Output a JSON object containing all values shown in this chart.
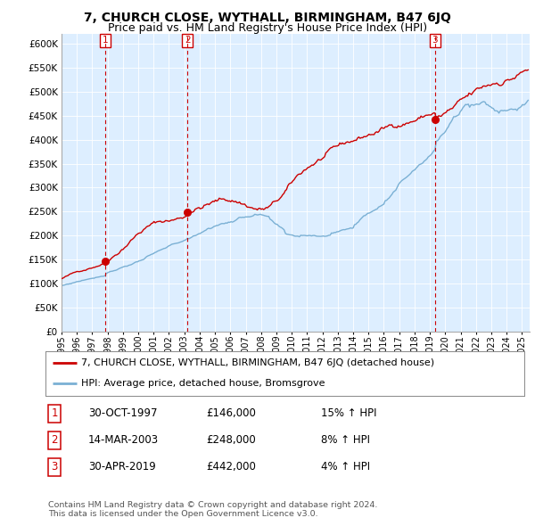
{
  "title": "7, CHURCH CLOSE, WYTHALL, BIRMINGHAM, B47 6JQ",
  "subtitle": "Price paid vs. HM Land Registry's House Price Index (HPI)",
  "ylim": [
    0,
    620000
  ],
  "yticks": [
    0,
    50000,
    100000,
    150000,
    200000,
    250000,
    300000,
    350000,
    400000,
    450000,
    500000,
    550000,
    600000
  ],
  "xlim_start": 1995.0,
  "xlim_end": 2025.5,
  "sale_dates": [
    1997.83,
    2003.21,
    2019.33
  ],
  "sale_prices": [
    146000,
    248000,
    442000
  ],
  "sale_labels": [
    "1",
    "2",
    "3"
  ],
  "legend_house": "7, CHURCH CLOSE, WYTHALL, BIRMINGHAM, B47 6JQ (detached house)",
  "legend_hpi": "HPI: Average price, detached house, Bromsgrove",
  "table_rows": [
    [
      "1",
      "30-OCT-1997",
      "£146,000",
      "15% ↑ HPI"
    ],
    [
      "2",
      "14-MAR-2003",
      "£248,000",
      "8% ↑ HPI"
    ],
    [
      "3",
      "30-APR-2019",
      "£442,000",
      "4% ↑ HPI"
    ]
  ],
  "footnote1": "Contains HM Land Registry data © Crown copyright and database right 2024.",
  "footnote2": "This data is licensed under the Open Government Licence v3.0.",
  "house_color": "#cc0000",
  "hpi_color": "#7ab0d4",
  "dashed_color": "#cc0000",
  "bg_color": "#ffffff",
  "chart_bg": "#ddeeff",
  "grid_color": "#ffffff",
  "title_fontsize": 10,
  "subtitle_fontsize": 9,
  "axis_fontsize": 7.5,
  "legend_fontsize": 8,
  "table_fontsize": 8.5
}
